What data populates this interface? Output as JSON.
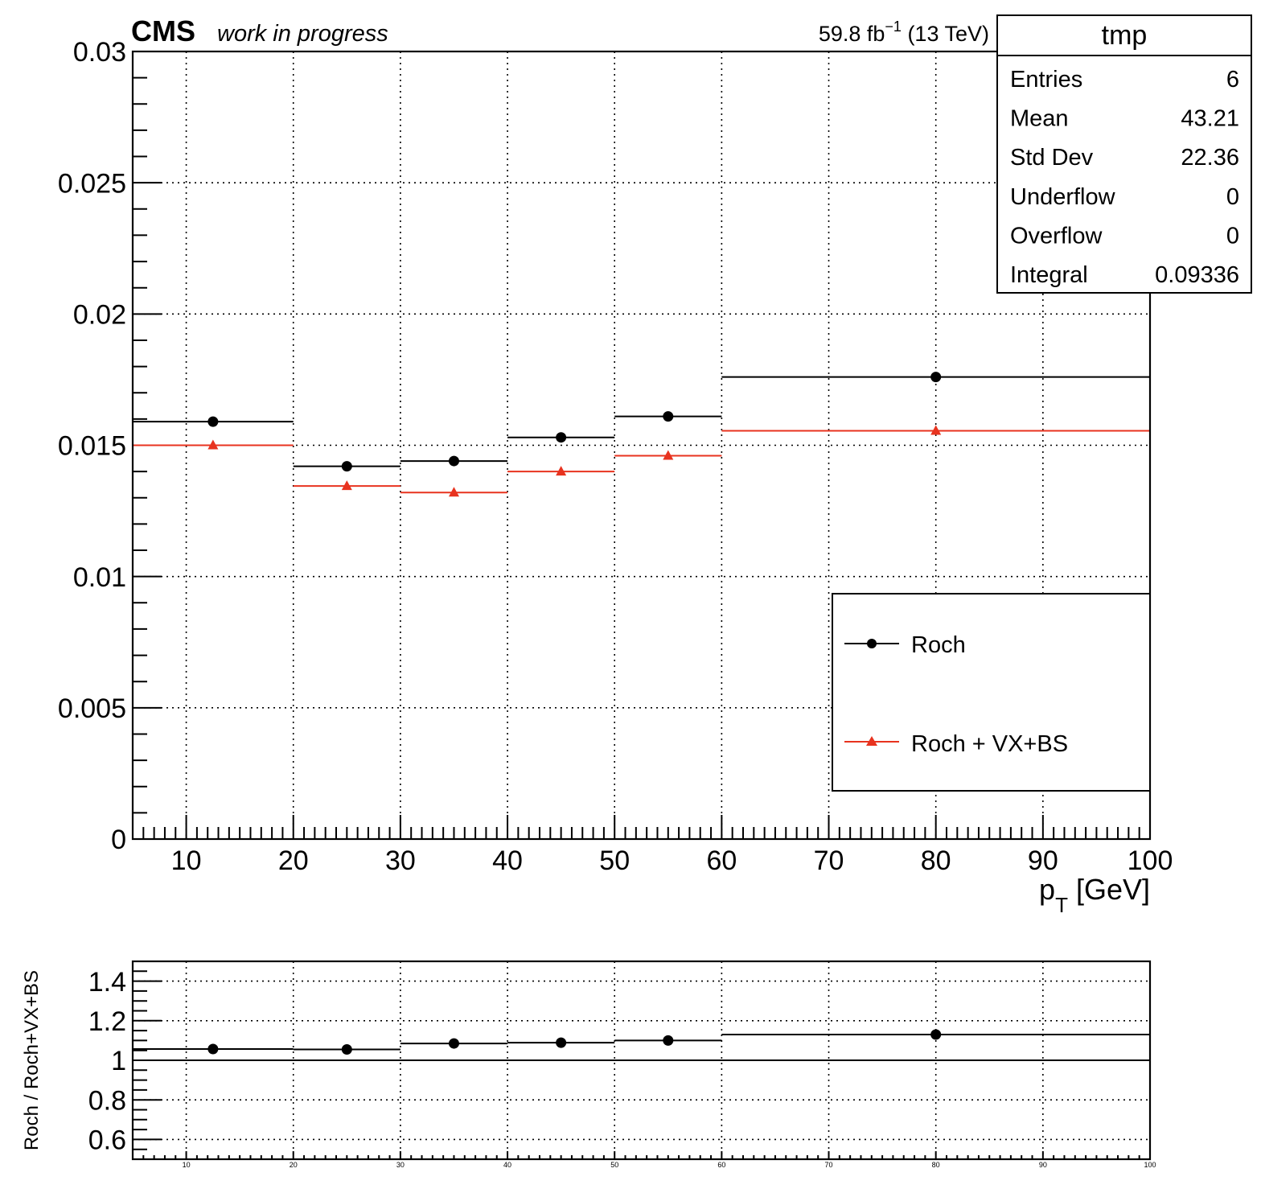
{
  "header": {
    "experiment": "CMS",
    "status": "work in progress",
    "lumi_value": "59.8 fb",
    "lumi_exp": "−1",
    "lumi_energy": " (13 TeV)"
  },
  "stats_box": {
    "title": "tmp",
    "rows": [
      {
        "label": "Entries",
        "value": "6"
      },
      {
        "label": "Mean",
        "value": "43.21"
      },
      {
        "label": "Std Dev",
        "value": "22.36"
      },
      {
        "label": "Underflow",
        "value": "0"
      },
      {
        "label": "Overflow",
        "value": "0"
      },
      {
        "label": "Integral",
        "value": "0.09336"
      }
    ]
  },
  "chart_data": [
    {
      "type": "line",
      "style": "step-histogram with markers",
      "xlabel_main": "p",
      "xlabel_sub": "T",
      "xlabel_unit": " [GeV]",
      "ylabel": "",
      "xlim": [
        5,
        100
      ],
      "ylim": [
        0,
        0.03
      ],
      "grid": true,
      "x_ticks": [
        10,
        20,
        30,
        40,
        50,
        60,
        70,
        80,
        90,
        100
      ],
      "y_ticks": [
        {
          "v": 0,
          "label": "0"
        },
        {
          "v": 0.005,
          "label": "0.005"
        },
        {
          "v": 0.01,
          "label": "0.01"
        },
        {
          "v": 0.015,
          "label": "0.015"
        },
        {
          "v": 0.02,
          "label": "0.02"
        },
        {
          "v": 0.025,
          "label": "0.025"
        },
        {
          "v": 0.03,
          "label": "0.03"
        }
      ],
      "legend_position": "lower-right",
      "series": [
        {
          "name": "Roch",
          "color": "#000000",
          "marker": "circle",
          "bins": [
            {
              "lo": 5,
              "hi": 20,
              "x": 12.5,
              "y": 0.0159
            },
            {
              "lo": 20,
              "hi": 30,
              "x": 25,
              "y": 0.0142
            },
            {
              "lo": 30,
              "hi": 40,
              "x": 35,
              "y": 0.0144
            },
            {
              "lo": 40,
              "hi": 50,
              "x": 45,
              "y": 0.0153
            },
            {
              "lo": 50,
              "hi": 60,
              "x": 55,
              "y": 0.0161
            },
            {
              "lo": 60,
              "hi": 100,
              "x": 80,
              "y": 0.0176
            }
          ]
        },
        {
          "name": "Roch + VX+BS",
          "color": "#e8331f",
          "marker": "triangle",
          "bins": [
            {
              "lo": 5,
              "hi": 20,
              "x": 12.5,
              "y": 0.015
            },
            {
              "lo": 20,
              "hi": 30,
              "x": 25,
              "y": 0.01345
            },
            {
              "lo": 30,
              "hi": 40,
              "x": 35,
              "y": 0.0132
            },
            {
              "lo": 40,
              "hi": 50,
              "x": 45,
              "y": 0.014
            },
            {
              "lo": 50,
              "hi": 60,
              "x": 55,
              "y": 0.0146
            },
            {
              "lo": 60,
              "hi": 100,
              "x": 80,
              "y": 0.01555
            }
          ]
        }
      ]
    },
    {
      "type": "line",
      "style": "ratio step-histogram with markers",
      "ylabel": "Roch / Roch+VX+BS",
      "xlim": [
        5,
        100
      ],
      "ylim": [
        0.5,
        1.5
      ],
      "grid": true,
      "x_ticks": [
        10,
        20,
        30,
        40,
        50,
        60,
        70,
        80,
        90,
        100
      ],
      "y_ticks": [
        {
          "v": 0.6,
          "label": "0.6"
        },
        {
          "v": 0.8,
          "label": "0.8"
        },
        {
          "v": 1.0,
          "label": "1"
        },
        {
          "v": 1.2,
          "label": "1.2"
        },
        {
          "v": 1.4,
          "label": "1.4"
        }
      ],
      "reference_line": 1.0,
      "series": [
        {
          "color": "#000000",
          "marker": "circle",
          "bins": [
            {
              "lo": 5,
              "hi": 20,
              "x": 12.5,
              "y": 1.057
            },
            {
              "lo": 20,
              "hi": 30,
              "x": 25,
              "y": 1.055
            },
            {
              "lo": 30,
              "hi": 40,
              "x": 35,
              "y": 1.085
            },
            {
              "lo": 40,
              "hi": 50,
              "x": 45,
              "y": 1.089
            },
            {
              "lo": 50,
              "hi": 60,
              "x": 55,
              "y": 1.1
            },
            {
              "lo": 60,
              "hi": 100,
              "x": 80,
              "y": 1.13
            }
          ]
        }
      ]
    }
  ]
}
